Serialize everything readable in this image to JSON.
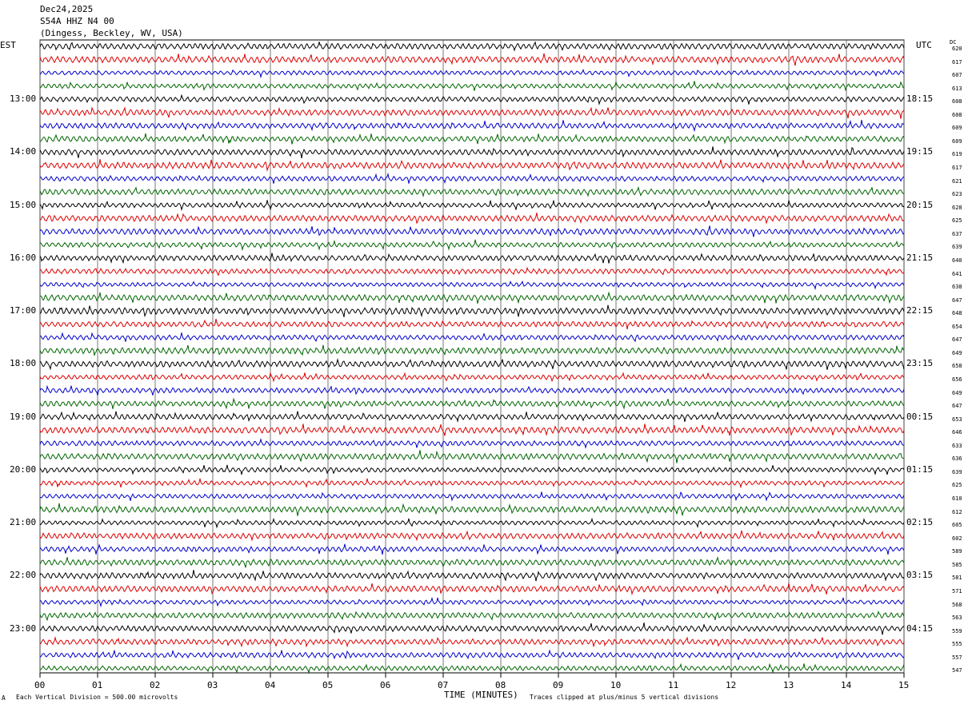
{
  "header": {
    "date": "Dec24,2025",
    "station": "S54A HHZ N4 00",
    "location": "(Dingess, Beckley, WV, USA)"
  },
  "labels": {
    "left_tz": "EST",
    "right_tz": "UTC",
    "dc": "DC",
    "xlabel": "TIME (MINUTES)",
    "scale_note": "Each Vertical Division =  500.00 microvolts",
    "clip_note": "Traces clipped at plus/minus 5 vertical divisions",
    "corner_mark": "A"
  },
  "chart_data": {
    "type": "line",
    "title": "S54A HHZ N4 00",
    "xlabel": "TIME (MINUTES)",
    "xlim": [
      0,
      15
    ],
    "x_ticks": [
      "00",
      "01",
      "02",
      "03",
      "04",
      "05",
      "06",
      "07",
      "08",
      "09",
      "10",
      "11",
      "12",
      "13",
      "14",
      "15"
    ],
    "trace_colors": [
      "#000000",
      "#dd0000",
      "#0000cc",
      "#006600"
    ],
    "grid": true,
    "left_hour_labels": [
      "13:00",
      "14:00",
      "15:00",
      "16:00",
      "17:00",
      "18:00",
      "19:00",
      "20:00",
      "21:00",
      "22:00",
      "23:00"
    ],
    "right_hour_labels": [
      "18:15",
      "19:15",
      "20:15",
      "21:15",
      "22:15",
      "23:15",
      "00:15",
      "01:15",
      "02:15",
      "03:15",
      "04:15"
    ],
    "dc_offsets": [
      620,
      617,
      607,
      613,
      608,
      608,
      609,
      609,
      619,
      617,
      621,
      623,
      628,
      625,
      637,
      639,
      640,
      641,
      638,
      647,
      648,
      654,
      647,
      649,
      658,
      656,
      649,
      647,
      653,
      646,
      633,
      636,
      639,
      625,
      610,
      612,
      605,
      602,
      589,
      585,
      581,
      571,
      568,
      563,
      559,
      555,
      557,
      547
    ]
  }
}
